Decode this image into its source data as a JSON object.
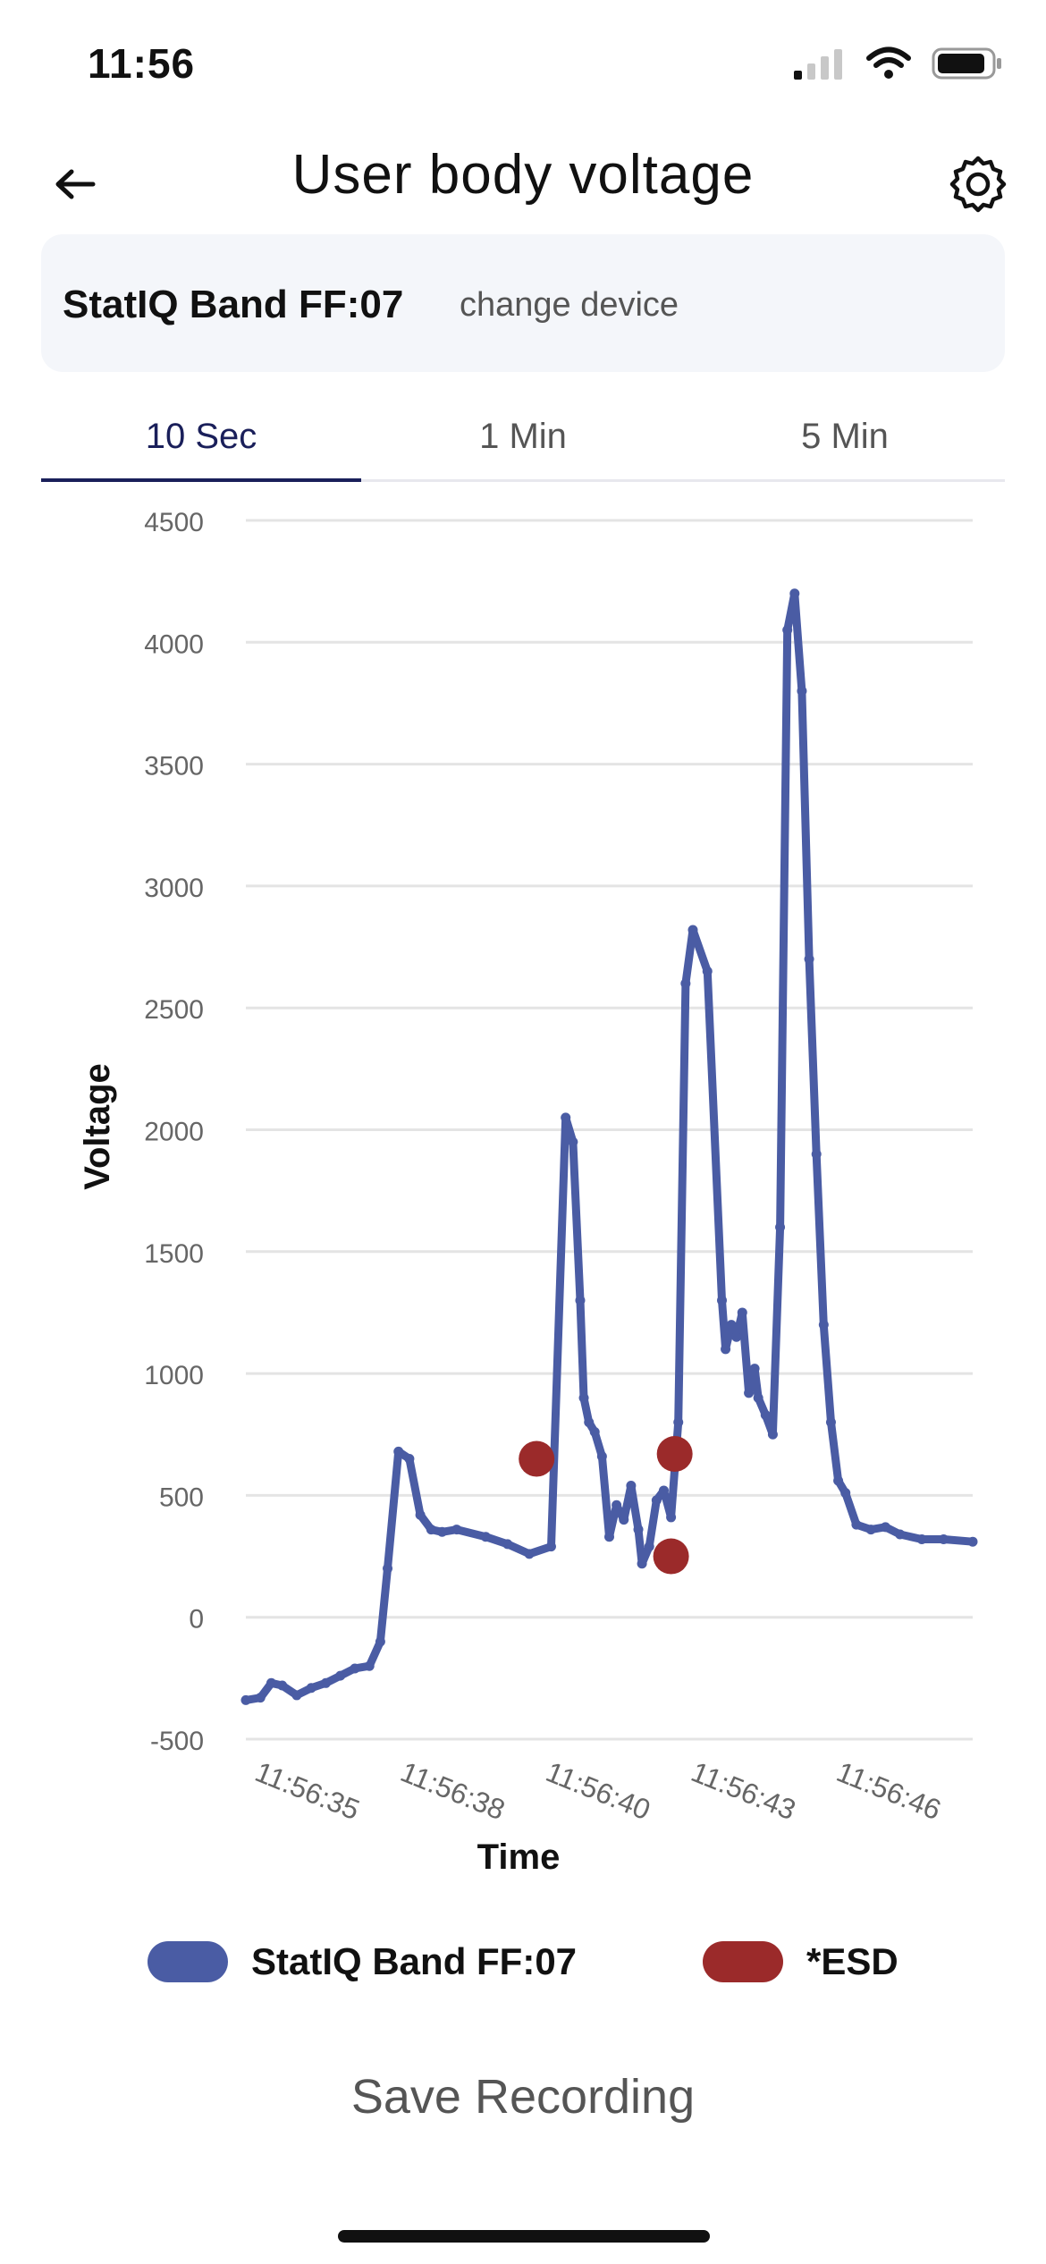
{
  "status_bar": {
    "time": "11:56"
  },
  "header": {
    "title": "User body voltage"
  },
  "device": {
    "name": "StatIQ Band FF:07",
    "change_label": "change device"
  },
  "tabs": [
    {
      "label": "10 Sec",
      "active": true
    },
    {
      "label": "1 Min",
      "active": false
    },
    {
      "label": "5 Min",
      "active": false
    }
  ],
  "chart_data": {
    "type": "line",
    "title": "",
    "xlabel": "Time",
    "ylabel": "Voltage",
    "ylim": [
      -500,
      4500
    ],
    "yticks": [
      "4500",
      "4000",
      "3500",
      "3000",
      "2500",
      "2000",
      "1500",
      "1000",
      "500",
      "0",
      "-500"
    ],
    "xticks": [
      "11:56:35",
      "11:56:38",
      "11:56:40",
      "11:56:43",
      "11:56:46"
    ],
    "grid": true,
    "legend_placement": "bottom",
    "series": [
      {
        "name": "StatIQ Band FF:07",
        "color": "#4a5ca4",
        "x": [
          0,
          0.2,
          0.35,
          0.5,
          0.7,
          0.9,
          1.1,
          1.3,
          1.5,
          1.7,
          1.85,
          1.95,
          2.1,
          2.25,
          2.4,
          2.55,
          2.7,
          2.9,
          3.3,
          3.6,
          3.9,
          4.2,
          4.4,
          4.5,
          4.6,
          4.65,
          4.72,
          4.8,
          4.9,
          5.0,
          5.1,
          5.2,
          5.3,
          5.4,
          5.45,
          5.55,
          5.65,
          5.75,
          5.85,
          5.95,
          6.05,
          6.15,
          6.35,
          6.55,
          6.6,
          6.68,
          6.75,
          6.83,
          6.92,
          7.0,
          7.05,
          7.15,
          7.25,
          7.35,
          7.45,
          7.55,
          7.65,
          7.75,
          7.85,
          7.95,
          8.05,
          8.15,
          8.25,
          8.4,
          8.6,
          8.8,
          9.0,
          9.3,
          9.6,
          10.0
        ],
        "values": [
          -340,
          -330,
          -270,
          -280,
          -320,
          -290,
          -270,
          -240,
          -210,
          -200,
          -100,
          200,
          680,
          650,
          420,
          360,
          350,
          360,
          330,
          300,
          260,
          290,
          2050,
          1950,
          1300,
          900,
          800,
          760,
          660,
          330,
          460,
          400,
          540,
          360,
          220,
          290,
          480,
          520,
          410,
          800,
          2600,
          2820,
          2650,
          1300,
          1100,
          1200,
          1150,
          1250,
          920,
          1020,
          900,
          830,
          750,
          1600,
          4050,
          4200,
          3800,
          2700,
          1900,
          1200,
          800,
          560,
          510,
          380,
          360,
          370,
          340,
          320,
          320,
          310
        ]
      },
      {
        "name": "*ESD",
        "color": "#9b2a2a",
        "type": "scatter",
        "x": [
          4.0,
          5.9,
          5.85
        ],
        "values": [
          650,
          670,
          250
        ]
      }
    ]
  },
  "legend": {
    "items": [
      {
        "label": "StatIQ Band FF:07",
        "color": "#4a5ca4"
      },
      {
        "label": "*ESD",
        "color": "#9b2a2a"
      }
    ]
  },
  "save": {
    "label": "Save Recording"
  }
}
